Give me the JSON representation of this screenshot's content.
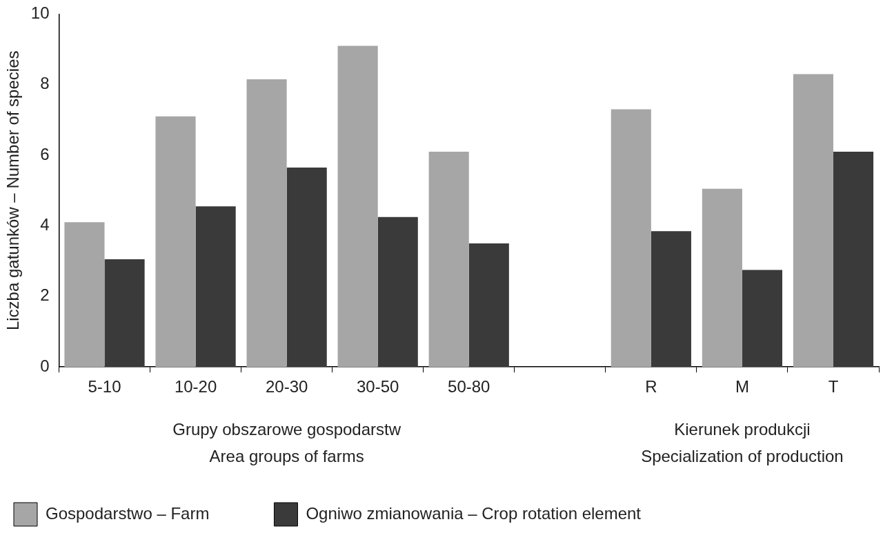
{
  "chart_data": {
    "type": "bar",
    "y_label": "Liczba gatunków – Number of species",
    "categories": [
      "5-10",
      "10-20",
      "20-30",
      "30-50",
      "50-80",
      null,
      "R",
      "M",
      "T"
    ],
    "series": [
      {
        "name": "Gospodarstwo – Farm",
        "color": "#a6a6a6",
        "values": [
          4.1,
          7.1,
          8.15,
          9.1,
          6.1,
          null,
          7.3,
          5.05,
          8.3
        ]
      },
      {
        "name": "Ogniwo zmianowania – Crop rotation element",
        "color": "#3a3a3a",
        "values": [
          3.05,
          4.55,
          5.65,
          4.25,
          3.5,
          null,
          3.85,
          2.75,
          6.1
        ]
      }
    ],
    "x_groups": [
      {
        "label": [
          "Grupy obszarowe gospodarstw",
          "Area groups of farms"
        ],
        "categories": [
          "5-10",
          "10-20",
          "20-30",
          "30-50",
          "50-80"
        ]
      },
      {
        "label": [
          "Kierunek produkcji",
          "Specialization of production"
        ],
        "categories": [
          "R",
          "M",
          "T"
        ]
      }
    ],
    "ylim": [
      0,
      10
    ],
    "yticks": [
      0,
      2,
      4,
      6,
      8,
      10
    ],
    "grid": false,
    "legend": "bottom"
  }
}
